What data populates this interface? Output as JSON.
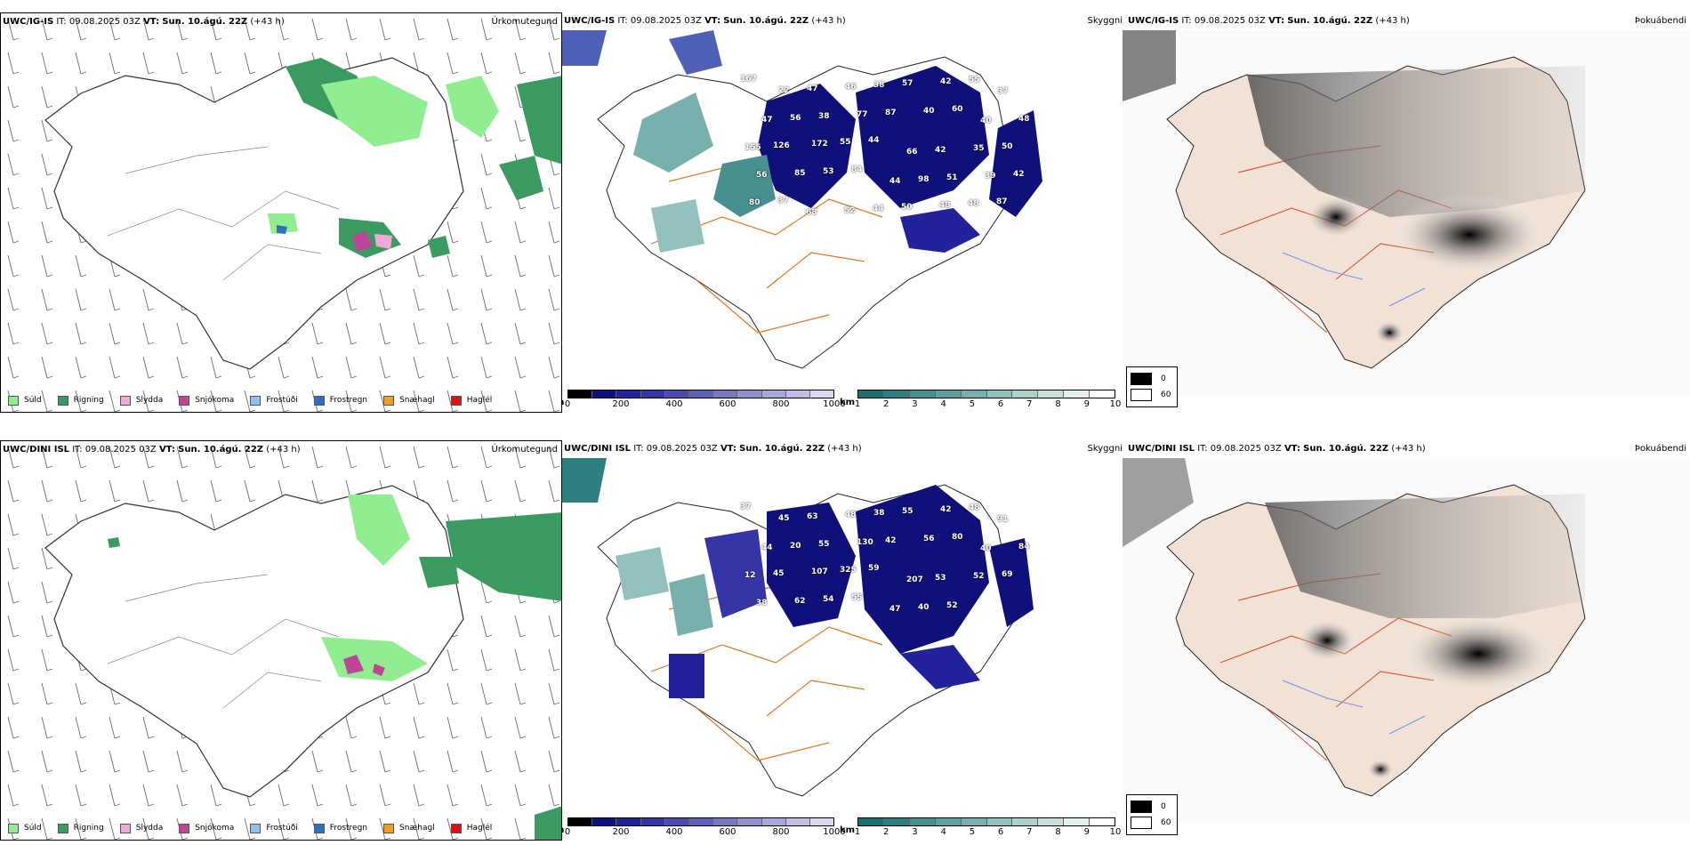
{
  "rows": [
    {
      "model": "UWC/IG-IS",
      "it_label": "IT:",
      "it_value": "09.08.2025 03Z",
      "vt_label": "VT:",
      "vt_value": "Sun. 10.ágú. 22Z",
      "lead": "(+43 h)",
      "precip_title": "Úrkomutegund",
      "vis_title": "Skyggni",
      "fog_title": "Þokuábendi",
      "cloud_labels": [
        "167",
        "22",
        "47",
        "46",
        "38",
        "57",
        "42",
        "55",
        "37",
        "47",
        "56",
        "38",
        "77",
        "87",
        "40",
        "60",
        "40",
        "48",
        "155",
        "126",
        "172",
        "55",
        "44",
        "66",
        "42",
        "35",
        "50",
        "56",
        "85",
        "53",
        "84",
        "44",
        "98",
        "51",
        "39",
        "42",
        "80",
        "37",
        "68",
        "52",
        "44",
        "50",
        "48",
        "48",
        "87"
      ]
    },
    {
      "model": "UWC/DINI ISL",
      "it_label": "IT:",
      "it_value": "09.08.2025 03Z",
      "vt_label": "VT:",
      "vt_value": "Sun. 10.ágú. 22Z",
      "lead": "(+43 h)",
      "precip_title": "Úrkomutegund",
      "vis_title": "Skyggni",
      "fog_title": "Þokuábendi",
      "cloud_labels": [
        "37",
        "45",
        "63",
        "48",
        "38",
        "55",
        "42",
        "48",
        "91",
        "44",
        "20",
        "55",
        "130",
        "42",
        "56",
        "80",
        "40",
        "84",
        "12",
        "45",
        "107",
        "325",
        "59",
        "207",
        "53",
        "52",
        "69",
        "38",
        "62",
        "54",
        "55",
        "47",
        "40",
        "52"
      ]
    }
  ],
  "precip_legend": [
    {
      "label": "Súld",
      "color": "#90ee90"
    },
    {
      "label": "Rigning",
      "color": "#3a9a60"
    },
    {
      "label": "Slydda",
      "color": "#f0a8d8"
    },
    {
      "label": "Snjókoma",
      "color": "#c0449a"
    },
    {
      "label": "Frostúði",
      "color": "#90c0f0"
    },
    {
      "label": "Frostregn",
      "color": "#2f6fc0"
    },
    {
      "label": "Snæhagl",
      "color": "#f0a020"
    },
    {
      "label": "Haglél",
      "color": "#e01010"
    }
  ],
  "cloud_scale": {
    "unit": "m",
    "ticks": [
      "0",
      "200",
      "400",
      "600",
      "800",
      "1000"
    ],
    "colors": [
      "#000000",
      "#10107a",
      "#22229a",
      "#3535a8",
      "#4a4ab0",
      "#6060b8",
      "#7878c0",
      "#9090cc",
      "#a8a8d8",
      "#c0c0e4",
      "#d8d8f0"
    ]
  },
  "vis_scale": {
    "unit": "km",
    "ticks": [
      "1",
      "2",
      "3",
      "4",
      "5",
      "6",
      "7",
      "8",
      "9",
      "10"
    ],
    "colors": [
      "#1a6e70",
      "#2e8080",
      "#479090",
      "#5ea0a0",
      "#78b0ae",
      "#92c0bc",
      "#aed0cc",
      "#c8e0dc",
      "#e2f0ee",
      "#ffffff"
    ]
  },
  "fog_legend": [
    {
      "label": "0",
      "color": "#000000"
    },
    {
      "label": "60",
      "color": "#ffffff"
    }
  ]
}
